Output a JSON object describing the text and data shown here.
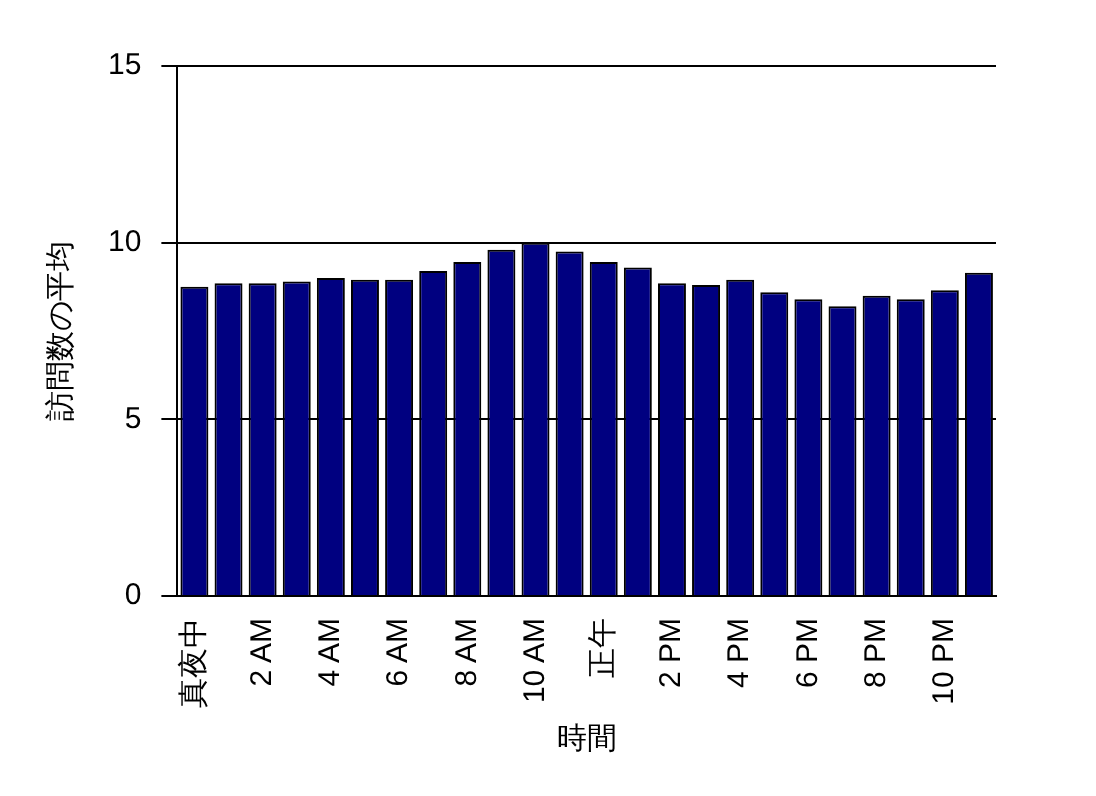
{
  "chart_data": {
    "type": "bar",
    "xlabel": "時間",
    "ylabel": "訪問数の平均",
    "categories": [
      "真夜中",
      null,
      "2 AM",
      null,
      "4 AM",
      null,
      "6 AM",
      null,
      "8 AM",
      null,
      "10 AM",
      null,
      "正午",
      null,
      "2 PM",
      null,
      "4 PM",
      null,
      "6 PM",
      null,
      "8 PM",
      null,
      "10 PM",
      null
    ],
    "values": [
      8.75,
      8.85,
      8.85,
      8.9,
      9.0,
      8.95,
      8.95,
      9.2,
      9.45,
      9.8,
      10.0,
      9.75,
      9.45,
      9.3,
      8.85,
      8.8,
      8.95,
      8.6,
      8.4,
      8.2,
      8.5,
      8.4,
      8.65,
      9.15
    ],
    "color": "#000080",
    "ylim": [
      0,
      15
    ],
    "yticks": [
      0,
      5,
      10,
      15
    ],
    "grid": "y",
    "legend": false
  }
}
